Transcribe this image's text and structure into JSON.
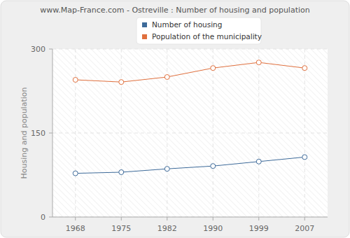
{
  "chart_data": {
    "type": "line",
    "title": "www.Map-France.com - Ostreville : Number of housing and population",
    "y_label": "Housing and population",
    "categories": [
      "1968",
      "1975",
      "1982",
      "1990",
      "1999",
      "2007"
    ],
    "series": [
      {
        "name": "Number of housing",
        "color": "#3e6b9a",
        "values": [
          78,
          80,
          86,
          91,
          99,
          107
        ],
        "marker": "circle"
      },
      {
        "name": "Population of the municipality",
        "color": "#e0703e",
        "values": [
          245,
          241,
          250,
          266,
          276,
          266
        ],
        "marker": "circle"
      }
    ],
    "ylim": [
      0,
      300
    ],
    "yticks": [
      0,
      150,
      300
    ],
    "grid": true,
    "legend": "top"
  }
}
